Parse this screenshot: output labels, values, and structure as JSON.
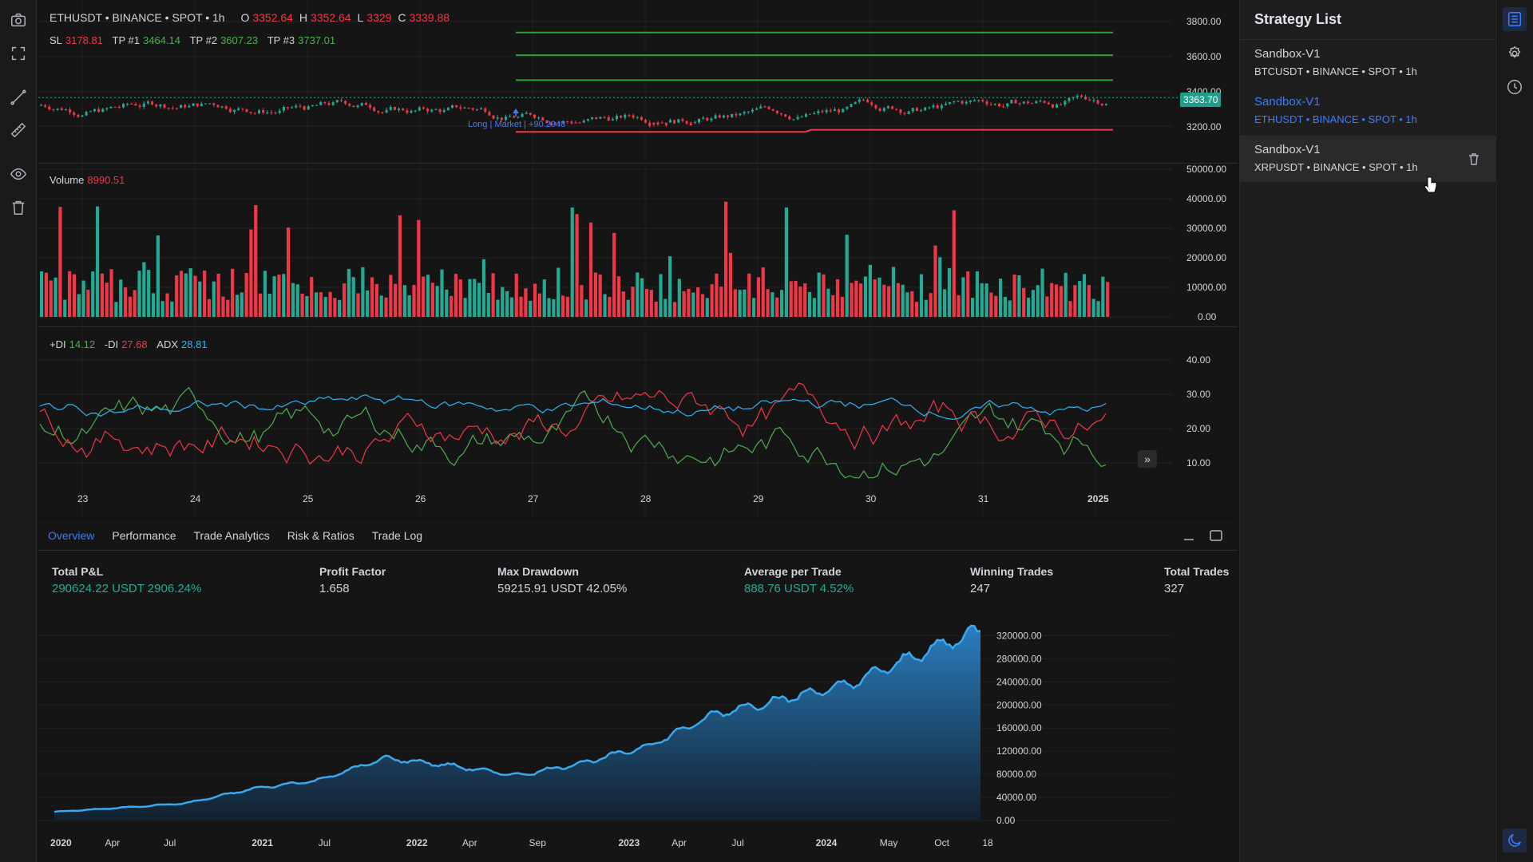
{
  "chart": {
    "symbol_line": "ETHUSDT • BINANCE • SPOT • 1h",
    "ohlc": {
      "o_label": "O",
      "o": "3352.64",
      "h_label": "H",
      "h": "3352.64",
      "l_label": "L",
      "l": "3329",
      "c_label": "C",
      "c": "3339.88"
    },
    "levels": {
      "sl_label": "SL",
      "sl": "3178.81",
      "tp1_label": "TP #1",
      "tp1": "3464.14",
      "tp2_label": "TP #2",
      "tp2": "3607.23",
      "tp3_label": "TP #3",
      "tp3": "3737.01"
    },
    "last_price": "3363.70",
    "trade_label": "Long | Market | +90.2948",
    "price_axis": [
      "3800.00",
      "3600.00",
      "3400.00",
      "3200.00"
    ],
    "volume_label": "Volume",
    "volume_value": "8990.51",
    "volume_axis": [
      "50000.00",
      "40000.00",
      "30000.00",
      "20000.00",
      "10000.00",
      "0.00"
    ],
    "dmi": {
      "pdi_label": "+DI",
      "pdi": "14.12",
      "mdi_label": "-DI",
      "mdi": "27.68",
      "adx_label": "ADX",
      "adx": "28.81"
    },
    "dmi_axis": [
      "40.00",
      "30.00",
      "20.00",
      "10.00"
    ],
    "time_axis": [
      "23",
      "24",
      "25",
      "26",
      "27",
      "28",
      "29",
      "30",
      "31",
      "2025"
    ],
    "colors": {
      "up": "#22ab94",
      "down": "#f23645",
      "pdi": "#4caf50",
      "mdi": "#f23645",
      "adx": "#29b6f6",
      "tp": "#2e9e3a",
      "sl": "#f23645",
      "accent": "#3b7dff"
    }
  },
  "bottom": {
    "tabs": [
      {
        "label": "Overview",
        "active": true
      },
      {
        "label": "Performance",
        "active": false
      },
      {
        "label": "Trade Analytics",
        "active": false
      },
      {
        "label": "Risk & Ratios",
        "active": false
      },
      {
        "label": "Trade Log",
        "active": false
      }
    ],
    "metrics": [
      {
        "title": "Total P&L",
        "value": "290624.22 USDT 2906.24%",
        "color": "#22ab94"
      },
      {
        "title": "Profit Factor",
        "value": "1.658",
        "color": "#d1d4dc"
      },
      {
        "title": "Max Drawdown",
        "value": "59215.91 USDT 42.05%",
        "color": "#d1d4dc"
      },
      {
        "title": "Average per Trade",
        "value": "888.76 USDT 4.52%",
        "color": "#22ab94"
      },
      {
        "title": "Winning Trades",
        "value": "247",
        "color": "#d1d4dc"
      },
      {
        "title": "Total Trades",
        "value": "327",
        "color": "#d1d4dc"
      }
    ],
    "equity_y_axis": [
      "320000.00",
      "280000.00",
      "240000.00",
      "200000.00",
      "160000.00",
      "120000.00",
      "80000.00",
      "40000.00",
      "0.00"
    ],
    "equity_x_axis": [
      "2020",
      "Apr",
      "Jul",
      "2021",
      "Jul",
      "2022",
      "Apr",
      "Sep",
      "2023",
      "Apr",
      "Jul",
      "2024",
      "May",
      "Oct",
      "18"
    ]
  },
  "chart_data": {
    "type": "area",
    "x": [
      "2020",
      "2020-04",
      "2020-07",
      "2021",
      "2021-07",
      "2022",
      "2022-04",
      "2022-09",
      "2023",
      "2023-04",
      "2023-07",
      "2024",
      "2024-05",
      "2024-10",
      "2024-12-18"
    ],
    "series": [
      {
        "values": [
          15000,
          22000,
          30000,
          55000,
          70000,
          108000,
          95000,
          78000,
          100000,
          130000,
          185000,
          210000,
          235000,
          285000,
          330000
        ]
      }
    ],
    "ylim": [
      0,
      340000
    ]
  },
  "sidebar": {
    "title": "Strategy List",
    "items": [
      {
        "name": "Sandbox-V1",
        "sub": "BTCUSDT • BINANCE • SPOT • 1h"
      },
      {
        "name": "Sandbox-V1",
        "sub": "ETHUSDT • BINANCE • SPOT • 1h"
      },
      {
        "name": "Sandbox-V1",
        "sub": "XRPUSDT • BINANCE • SPOT • 1h"
      }
    ]
  }
}
